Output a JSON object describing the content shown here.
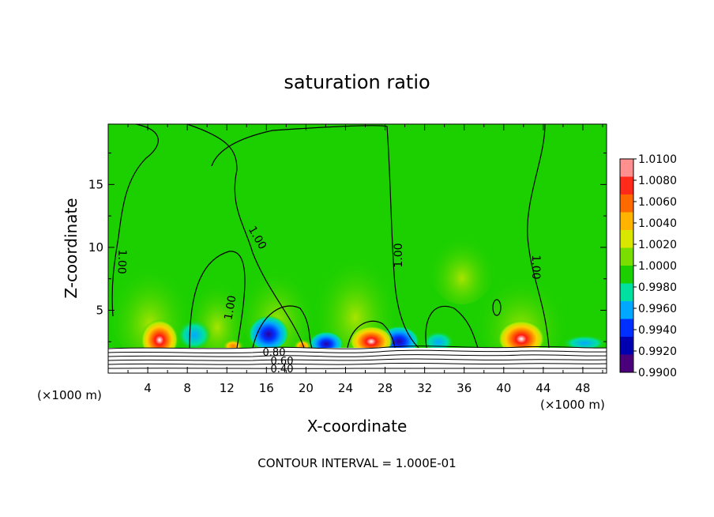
{
  "chart_data": {
    "type": "heatmap",
    "title": "saturation ratio",
    "xlabel": "X-coordinate",
    "ylabel": "Z-coordinate",
    "x_unit_left": "(×1000 m)",
    "x_unit_right": "(×1000 m)",
    "xlim": [
      0,
      50.4
    ],
    "ylim": [
      0,
      19.8
    ],
    "x_ticks": [
      4,
      8,
      12,
      16,
      20,
      24,
      28,
      32,
      36,
      40,
      44,
      48
    ],
    "y_ticks": [
      5,
      10,
      15
    ],
    "footer": "CONTOUR INTERVAL = 1.000E-01",
    "colorbar": {
      "levels": [
        "1.0100",
        "1.0080",
        "1.0060",
        "1.0040",
        "1.0020",
        "1.0000",
        "0.9980",
        "0.9960",
        "0.9940",
        "0.9920",
        "0.9900"
      ],
      "colors": [
        "#ff9090",
        "#ff2a1a",
        "#ff6a00",
        "#ffb400",
        "#d8e600",
        "#7ade00",
        "#1cd000",
        "#00e0a0",
        "#00a8ff",
        "#0030ff",
        "#0000b0",
        "#4a007a"
      ]
    },
    "contour_labels": [
      "1.00",
      "1.00",
      "1.00",
      "1.00",
      "1.00",
      "0.80",
      "0.60",
      "0.40"
    ],
    "hotspots": [
      {
        "x": 5.2,
        "z": 2.6,
        "value": 1.01
      },
      {
        "x": 25.8,
        "z": 2.5,
        "value": 1.008
      },
      {
        "x": 41.2,
        "z": 2.6,
        "value": 1.01
      },
      {
        "x": 12.4,
        "z": 2.5,
        "value": 1.006
      },
      {
        "x": 19.5,
        "z": 2.4,
        "value": 1.006
      }
    ],
    "coldspots": [
      {
        "x": 21.8,
        "z": 2.2,
        "value": 0.992
      },
      {
        "x": 29.5,
        "z": 2.4,
        "value": 0.992
      },
      {
        "x": 16.2,
        "z": 2.6,
        "value": 0.995
      },
      {
        "x": 9.3,
        "z": 2.5,
        "value": 0.996
      }
    ]
  }
}
